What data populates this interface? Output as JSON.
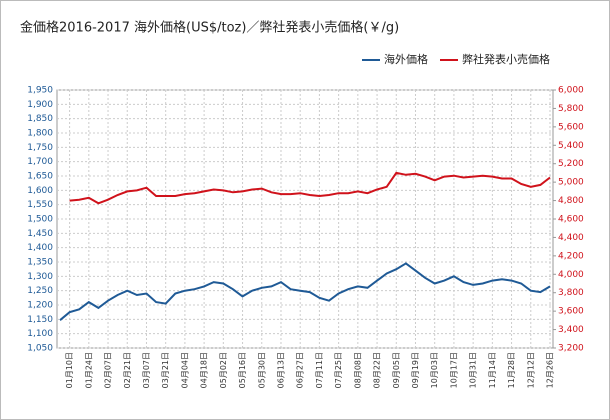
{
  "chart_data": {
    "type": "line",
    "title": "金価格2016-2017 海外価格(US$/toz)／弊社発表小売価格(￥/g)",
    "categories": [
      null,
      "01月10日",
      null,
      "01月24日",
      null,
      "02月07日",
      null,
      "02月21日",
      null,
      "03月07日",
      null,
      "03月21日",
      null,
      "04月04日",
      null,
      "04月18日",
      null,
      "05月02日",
      null,
      "05月16日",
      null,
      "05月30日",
      null,
      "06月13日",
      null,
      "06月27日",
      null,
      "07月11日",
      null,
      "07月25日",
      null,
      "08月08日",
      null,
      "08月22日",
      null,
      "09月05日",
      null,
      "09月19日",
      null,
      "10月03日",
      null,
      "10月17日",
      null,
      "10月31日",
      null,
      "11月14日",
      null,
      "11月28日",
      null,
      "12月12日",
      null,
      "12月26日"
    ],
    "series": [
      {
        "name": "海外価格",
        "color": "#1f5a96",
        "values": [
          1147,
          1175,
          1185,
          1210,
          1190,
          1215,
          1235,
          1250,
          1235,
          1240,
          1210,
          1205,
          1240,
          1250,
          1255,
          1265,
          1280,
          1275,
          1255,
          1230,
          1250,
          1260,
          1265,
          1280,
          1255,
          1250,
          1245,
          1225,
          1215,
          1240,
          1255,
          1265,
          1260,
          1285,
          1310,
          1325,
          1345,
          1320,
          1295,
          1275,
          1285,
          1300,
          1280,
          1270,
          1275,
          1285,
          1290,
          1285,
          1275,
          1250,
          1245,
          1265
        ]
      },
      {
        "name": "弊社発表小売価格",
        "color": "#d0121b",
        "axis": "y2",
        "values": [
          null,
          4800,
          4810,
          4830,
          4770,
          4810,
          4860,
          4900,
          4910,
          4940,
          4850,
          4850,
          4850,
          4870,
          4880,
          4900,
          4920,
          4910,
          4890,
          4900,
          4920,
          4930,
          4890,
          4870,
          4870,
          4880,
          4860,
          4850,
          4860,
          4880,
          4880,
          4900,
          4880,
          4920,
          4950,
          5100,
          5080,
          5090,
          5060,
          5020,
          5060,
          5070,
          5050,
          5060,
          5070,
          5060,
          5040,
          5040,
          4980,
          4950,
          4970,
          5050
        ]
      }
    ],
    "ylim": [
      1050,
      1950
    ],
    "yticks": [
      {
        "value": 1050,
        "label": "1,050"
      },
      {
        "value": 1100,
        "label": "1,100"
      },
      {
        "value": 1150,
        "label": "1,150"
      },
      {
        "value": 1200,
        "label": "1,200"
      },
      {
        "value": 1250,
        "label": "1,250"
      },
      {
        "value": 1300,
        "label": "1,300"
      },
      {
        "value": 1350,
        "label": "1,350"
      },
      {
        "value": 1400,
        "label": "1,400"
      },
      {
        "value": 1450,
        "label": "1,450"
      },
      {
        "value": 1500,
        "label": "1,500"
      },
      {
        "value": 1550,
        "label": "1,550"
      },
      {
        "value": 1600,
        "label": "1,600"
      },
      {
        "value": 1650,
        "label": "1,650"
      },
      {
        "value": 1700,
        "label": "1,700"
      },
      {
        "value": 1750,
        "label": "1,750"
      },
      {
        "value": 1800,
        "label": "1,800"
      },
      {
        "value": 1850,
        "label": "1,850"
      },
      {
        "value": 1900,
        "label": "1,900"
      },
      {
        "value": 1950,
        "label": "1,950"
      }
    ],
    "y2lim": [
      3200,
      6000
    ],
    "y2ticks": [
      {
        "value": 3200,
        "label": "3,200"
      },
      {
        "value": 3400,
        "label": "3,400"
      },
      {
        "value": 3600,
        "label": "3,600"
      },
      {
        "value": 3800,
        "label": "3,800"
      },
      {
        "value": 4000,
        "label": "4,000"
      },
      {
        "value": 4200,
        "label": "4,200"
      },
      {
        "value": 4400,
        "label": "4,400"
      },
      {
        "value": 4600,
        "label": "4,600"
      },
      {
        "value": 4800,
        "label": "4,800"
      },
      {
        "value": 5000,
        "label": "5,000"
      },
      {
        "value": 5200,
        "label": "5,200"
      },
      {
        "value": 5400,
        "label": "5,400"
      },
      {
        "value": 5600,
        "label": "5,600"
      },
      {
        "value": 5800,
        "label": "5,800"
      },
      {
        "value": 6000,
        "label": "6,000"
      }
    ],
    "grid": true,
    "legend": "top-right"
  }
}
